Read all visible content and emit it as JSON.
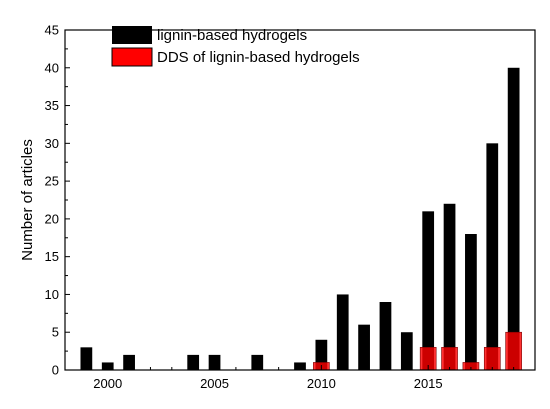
{
  "chart_data": {
    "type": "bar",
    "ylabel": "Number of articles",
    "xlabel": "",
    "xlim": [
      1998,
      2020
    ],
    "ylim": [
      0,
      45
    ],
    "x_ticks": [
      2000,
      2005,
      2010,
      2015
    ],
    "y_ticks": [
      0,
      5,
      10,
      15,
      20,
      25,
      30,
      35,
      40,
      45
    ],
    "legend_position": "top",
    "grid": false,
    "series": [
      {
        "name": "lignin-based hydrogels",
        "color": "#000000",
        "points": [
          {
            "x": 1999,
            "y": 3
          },
          {
            "x": 2000,
            "y": 1
          },
          {
            "x": 2001,
            "y": 2
          },
          {
            "x": 2004,
            "y": 2
          },
          {
            "x": 2005,
            "y": 2
          },
          {
            "x": 2007,
            "y": 2
          },
          {
            "x": 2009,
            "y": 1
          },
          {
            "x": 2010,
            "y": 4
          },
          {
            "x": 2011,
            "y": 10
          },
          {
            "x": 2012,
            "y": 6
          },
          {
            "x": 2013,
            "y": 9
          },
          {
            "x": 2014,
            "y": 5
          },
          {
            "x": 2015,
            "y": 21
          },
          {
            "x": 2016,
            "y": 22
          },
          {
            "x": 2017,
            "y": 18
          },
          {
            "x": 2018,
            "y": 30
          },
          {
            "x": 2019,
            "y": 40
          }
        ]
      },
      {
        "name": "DDS of lignin-based hydrogels",
        "color": "#ff0000",
        "points": [
          {
            "x": 2010,
            "y": 1
          },
          {
            "x": 2015,
            "y": 3
          },
          {
            "x": 2016,
            "y": 3
          },
          {
            "x": 2017,
            "y": 1
          },
          {
            "x": 2018,
            "y": 3
          },
          {
            "x": 2019,
            "y": 5
          }
        ]
      }
    ]
  }
}
